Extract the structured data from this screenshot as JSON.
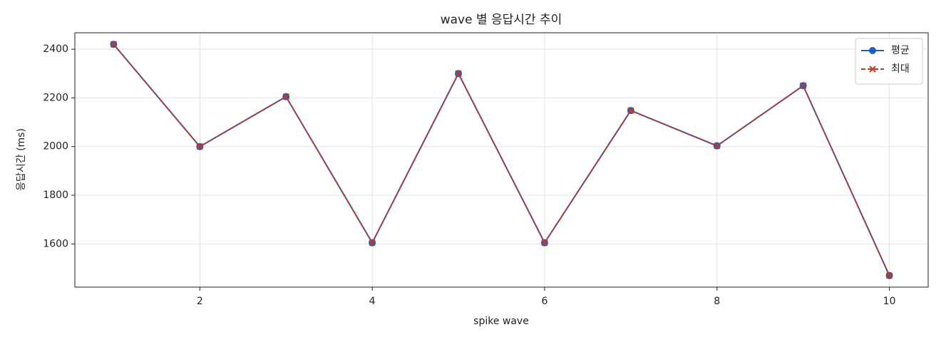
{
  "chart_data": {
    "type": "line",
    "title": "wave 별 응답시간 추이",
    "x_label": "spike wave",
    "y_label": "응답시간 (ms)",
    "x": [
      1,
      2,
      3,
      4,
      5,
      6,
      7,
      8,
      9,
      10
    ],
    "series": [
      {
        "name": "평균",
        "color": "#1f5fbf",
        "marker": "o",
        "linestyle": "solid",
        "values": [
          2420,
          2000,
          2205,
          1605,
          2300,
          1605,
          2148,
          2003,
          2250,
          1470
        ]
      },
      {
        "name": "최대",
        "color": "#c0392b",
        "marker": "x",
        "linestyle": "dashed",
        "values": [
          2420,
          2000,
          2205,
          1605,
          2300,
          1605,
          2148,
          2003,
          2250,
          1470
        ]
      }
    ],
    "xlim": [
      0.55,
      10.45
    ],
    "ylim": [
      1422.5,
      2467.5
    ],
    "xticks": [
      2,
      4,
      6,
      8,
      10
    ],
    "yticks": [
      1600,
      1800,
      2000,
      2200,
      2400
    ],
    "grid": true,
    "legend": "upper right"
  }
}
